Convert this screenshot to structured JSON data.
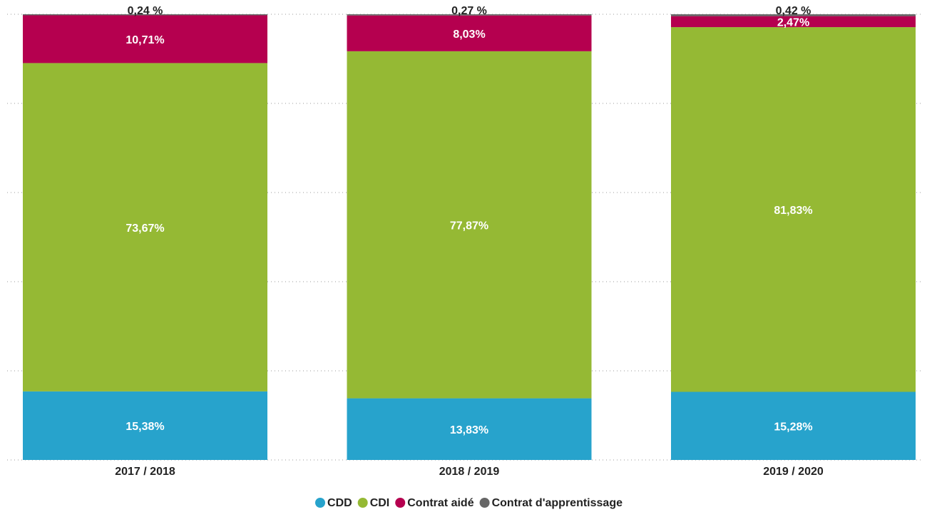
{
  "chart_data": {
    "type": "stacked_bar",
    "categories": [
      "2017 / 2018",
      "2018 / 2019",
      "2019 / 2020"
    ],
    "series": [
      {
        "name": "CDD",
        "color": "#27a3cc",
        "values": [
          15.38,
          13.83,
          15.28
        ],
        "value_labels": [
          "15,38%",
          "13,83%",
          "15,28%"
        ]
      },
      {
        "name": "CDI",
        "color": "#95b934",
        "values": [
          73.67,
          77.87,
          81.83
        ],
        "value_labels": [
          "73,67%",
          "77,87%",
          "81,83%"
        ]
      },
      {
        "name": "Contrat aidé",
        "color": "#b5004f",
        "values": [
          10.71,
          8.03,
          2.47
        ],
        "value_labels": [
          "10,71%",
          "8,03%",
          "2,47%"
        ]
      },
      {
        "name": "Contrat d'apprentissage",
        "color": "#666666",
        "values": [
          0.24,
          0.27,
          0.42
        ],
        "value_labels": [
          "0,24 %",
          "0,27 %",
          "0,42 %"
        ]
      }
    ],
    "ylim": [
      0,
      100
    ],
    "yticks": [
      0,
      20,
      40,
      60,
      80,
      100
    ],
    "grid": true,
    "legend": "bottom"
  }
}
